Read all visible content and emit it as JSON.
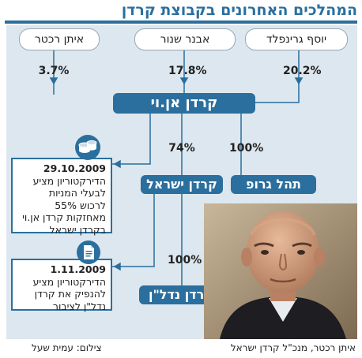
{
  "title": "המהלכים האחרונים בקבוצת קרדן",
  "owners": [
    {
      "name": "יוסף גרינפלד",
      "stake": "20.2%"
    },
    {
      "name": "אבנר שנור",
      "stake": "17.8%"
    },
    {
      "name": "איתן רכטר",
      "stake": "3.7%"
    }
  ],
  "holding": {
    "name": "קרדן אן.וי"
  },
  "subsidiaries": {
    "tahal": {
      "name": "תהל גרופ",
      "stake": "100%"
    },
    "israel": {
      "name": "קרדן ישראל",
      "stake": "74%"
    },
    "nadlan": {
      "name": "קרדן נדל\"ן",
      "stake": "100%"
    }
  },
  "notes": [
    {
      "date": "29.10.2009",
      "lines": [
        "הדירקטוריון מציע",
        "לבעלי המניות",
        "לרכוש 55%",
        "מאחזקות קרדן אן.וי",
        "בקרדן ישראל"
      ],
      "icon": "coins-icon"
    },
    {
      "date": "1.11.2009",
      "lines": [
        "הדירקטוריון מציע",
        "להנפיק את קרדן",
        "נדל\"ן לציבור"
      ],
      "icon": "document-icon"
    }
  ],
  "photo_caption": "איתן רכטר, מנכ\"ל קרדן ישראל",
  "photo_credit": "צילום: עמית שעל",
  "colors": {
    "accent": "#2a6f9e",
    "panel": "#dde7ef"
  }
}
